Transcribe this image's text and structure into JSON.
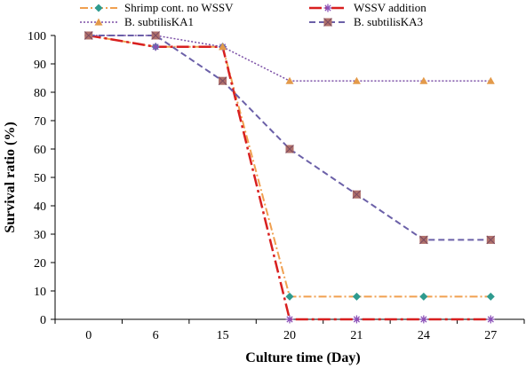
{
  "chart_data": {
    "type": "line",
    "title": "",
    "xlabel": "Culture time (Day)",
    "ylabel": "Survival ratio (%)",
    "categories": [
      "0",
      "6",
      "15",
      "20",
      "21",
      "24",
      "27"
    ],
    "ylim": [
      0,
      100
    ],
    "yticks": [
      0,
      10,
      20,
      30,
      40,
      50,
      60,
      70,
      80,
      90,
      100
    ],
    "grid": false,
    "legend_position": "top",
    "series": [
      {
        "name": "Shrimp cont. no WSSV",
        "values": [
          100,
          96,
          96,
          8,
          8,
          8,
          8
        ],
        "color": "#f0a050",
        "marker": "diamond",
        "marker_color": "#2e9b8f",
        "dash": "9,3,2,3",
        "width": 2
      },
      {
        "name": "WSSV addition",
        "values": [
          100,
          96,
          96,
          0,
          0,
          0,
          0
        ],
        "color": "#d81f1f",
        "marker": "asterisk",
        "marker_color": "#8a50b8",
        "dash": "14,4,3,4",
        "width": 2.5
      },
      {
        "name": "B. subtilisKA1",
        "values": [
          100,
          100,
          96,
          84,
          84,
          84,
          84
        ],
        "color": "#7b4fa6",
        "marker": "triangle",
        "marker_color": "#e39a4a",
        "dash": "2,2",
        "width": 1.5
      },
      {
        "name": "B. subtilisKA3",
        "values": [
          100,
          100,
          84,
          60,
          44,
          28,
          28
        ],
        "color": "#6b60a8",
        "marker": "square",
        "marker_color": "#b0706a",
        "dash": "7,4",
        "width": 2
      }
    ]
  }
}
